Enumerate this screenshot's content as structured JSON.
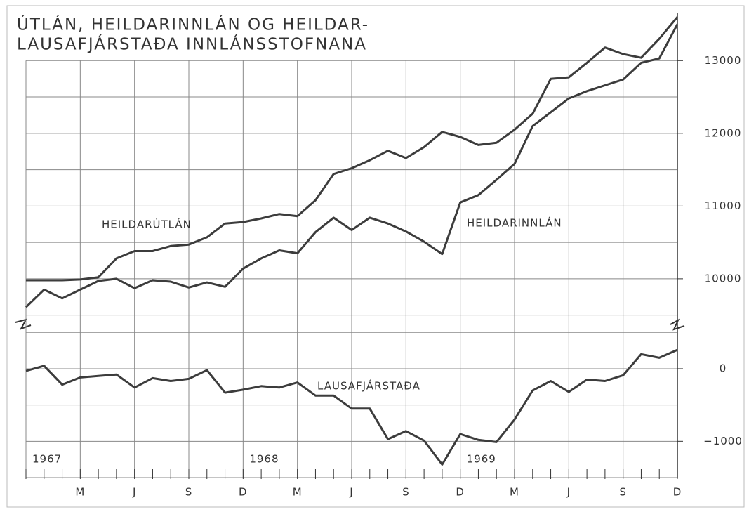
{
  "chart_data": [
    {
      "type": "line",
      "title": [
        "ÚTLÁN, HEILDARINNLÁN OG HEILDAR-",
        "LAUSAFJÁRSTAÐA INNLÁNSSTOFNANA"
      ],
      "ylim": [
        9400,
        13650
      ],
      "yticks": [
        10000,
        11000,
        12000,
        13000
      ],
      "minor_yticks": [
        9500,
        10500,
        11500,
        12500
      ],
      "grid": true,
      "series": [
        {
          "name": "HEILDARÚTLÁN",
          "color": "#3c3c3c",
          "values": [
            9980,
            9980,
            9980,
            9990,
            10020,
            10280,
            10380,
            10380,
            10450,
            10470,
            10570,
            10760,
            10780,
            10830,
            10890,
            10860,
            11080,
            11440,
            11520,
            11630,
            11760,
            11660,
            11810,
            12020,
            11950,
            11840,
            11870,
            12050,
            12270,
            12750,
            12770,
            12970,
            13180,
            13090,
            13040,
            13300,
            13600
          ]
        },
        {
          "name": "HEILDARINNLÁN",
          "color": "#3c3c3c",
          "values": [
            9610,
            9850,
            9730,
            9850,
            9970,
            10000,
            9870,
            9980,
            9960,
            9880,
            9950,
            9890,
            10140,
            10280,
            10390,
            10350,
            10640,
            10840,
            10670,
            10840,
            10760,
            10650,
            10510,
            10340,
            11050,
            11150,
            11360,
            11580,
            12100,
            12290,
            12480,
            12580,
            12660,
            12740,
            12970,
            13030,
            13500
          ]
        }
      ]
    },
    {
      "type": "line",
      "ylim": [
        -1500,
        580
      ],
      "yticks": [
        {
          "value": -1000,
          "label": "−1000"
        },
        0
      ],
      "minor_yticks": [
        -1500,
        -500,
        500
      ],
      "grid": true,
      "categories": [
        null,
        null,
        null,
        "M",
        null,
        null,
        "J",
        null,
        null,
        "S",
        null,
        null,
        "D",
        null,
        null,
        "M",
        null,
        null,
        "J",
        null,
        null,
        "S",
        null,
        null,
        "D",
        null,
        null,
        "M",
        null,
        null,
        "J",
        null,
        null,
        "S",
        null,
        null,
        "D"
      ],
      "years": [
        "1967",
        "1968",
        "1969"
      ],
      "series": [
        {
          "name": "LAUSAFJÁRSTAÐA",
          "color": "#3c3c3c",
          "values": [
            -30,
            40,
            -220,
            -120,
            -100,
            -80,
            -260,
            -130,
            -170,
            -140,
            -20,
            -330,
            -290,
            -240,
            -260,
            -190,
            -370,
            -370,
            -550,
            -550,
            -970,
            -860,
            -990,
            -1320,
            -900,
            -980,
            -1010,
            -700,
            -300,
            -170,
            -320,
            -150,
            -170,
            -90,
            200,
            150,
            260
          ]
        }
      ]
    }
  ]
}
